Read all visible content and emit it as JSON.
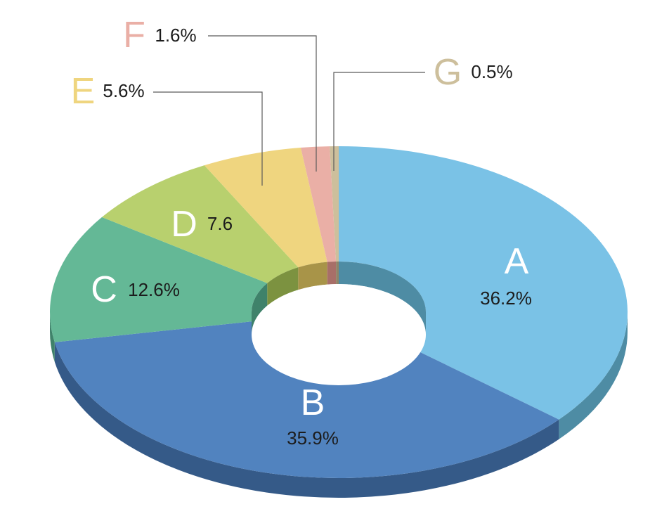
{
  "chart_data": {
    "type": "pie",
    "title": "",
    "slices": [
      {
        "letter": "A",
        "value_label": "36.2%",
        "value": 36.2,
        "color": "#7AC2E6",
        "side": "#4E8CA4",
        "letter_color": "#ffffff"
      },
      {
        "letter": "B",
        "value_label": "35.9%",
        "value": 35.9,
        "color": "#5183BF",
        "side": "#355A88",
        "letter_color": "#ffffff"
      },
      {
        "letter": "C",
        "value_label": "12.6%",
        "value": 12.6,
        "color": "#64B896",
        "side": "#3F826A",
        "letter_color": "#ffffff"
      },
      {
        "letter": "D",
        "value_label": "7.6",
        "value": 7.6,
        "color": "#B8D06E",
        "side": "#7C9240",
        "letter_color": "#ffffff"
      },
      {
        "letter": "E",
        "value_label": "5.6%",
        "value": 5.6,
        "color": "#EFD57F",
        "side": "#A89448",
        "letter_color": "#EFD57F"
      },
      {
        "letter": "F",
        "value_label": "1.6%",
        "value": 1.6,
        "color": "#EAAFA6",
        "side": "#A86F68",
        "letter_color": "#EAAFA6"
      },
      {
        "letter": "G",
        "value_label": "0.5%",
        "value": 0.5,
        "color": "#CDBF9C",
        "side": "#8F8468",
        "letter_color": "#CDBF9C"
      }
    ],
    "start_angle_deg": 0,
    "direction": "clockwise",
    "hole": true,
    "legend": "none"
  }
}
